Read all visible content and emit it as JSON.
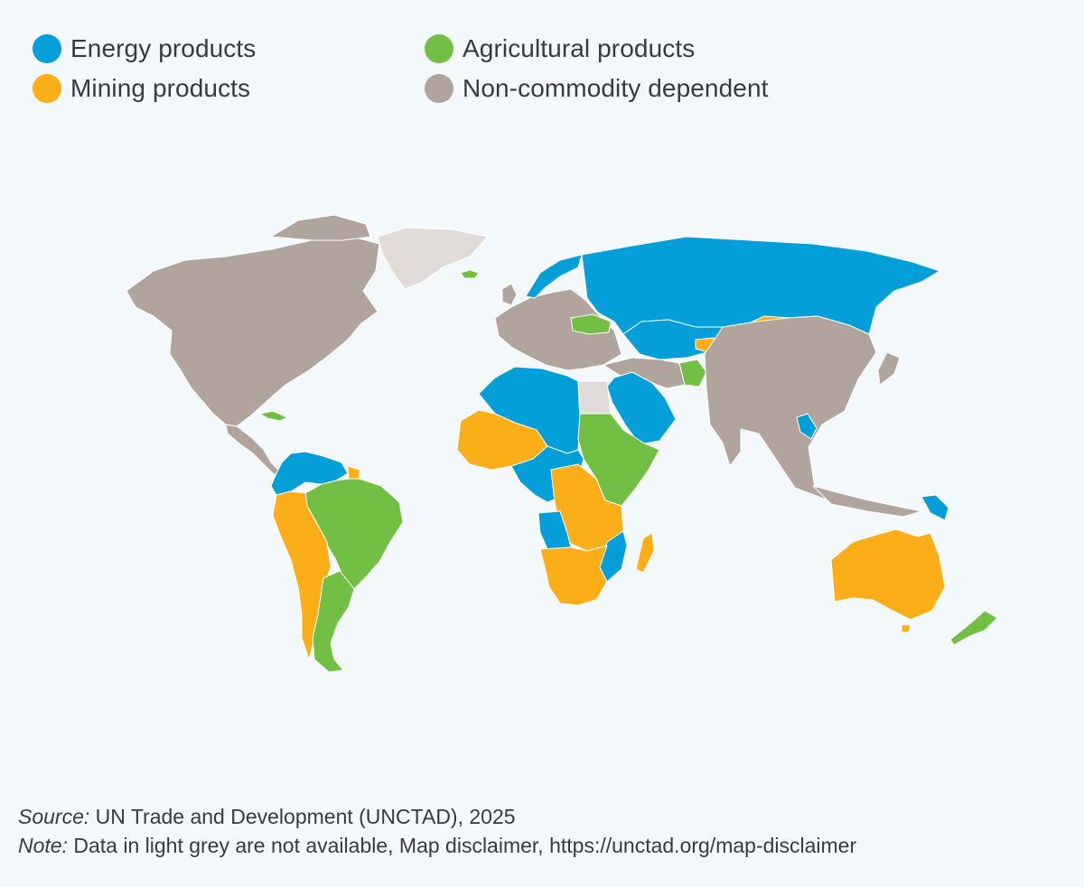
{
  "legend": [
    {
      "label": "Energy products",
      "color": "#049fd9",
      "category": "energy"
    },
    {
      "label": "Agricultural products",
      "color": "#72bf44",
      "category": "agricultural"
    },
    {
      "label": "Mining products",
      "color": "#fbae17",
      "category": "mining"
    },
    {
      "label": "Non-commodity dependent",
      "color": "#b0a49d",
      "category": "non_commodity"
    }
  ],
  "not_available_color": "#e0dbd8",
  "border_color": "#ffffff",
  "notes": {
    "source_label": "Source:",
    "source_text": " UN Trade and Development (UNCTAD), 2025",
    "note_label": "Note:",
    "note_text": " Data in light grey are not available, Map disclaimer, https://unctad.org/map-disclaimer"
  },
  "regions": [
    {
      "name": "North America",
      "category": "non_commodity"
    },
    {
      "name": "Greenland",
      "category": "not_available"
    },
    {
      "name": "Iceland",
      "category": "agricultural"
    },
    {
      "name": "Cuba",
      "category": "agricultural"
    },
    {
      "name": "Venezuela / Colombia / Ecuador / Guyana",
      "category": "energy"
    },
    {
      "name": "Suriname",
      "category": "mining"
    },
    {
      "name": "Brazil / Paraguay / Uruguay / Argentina",
      "category": "agricultural"
    },
    {
      "name": "Peru / Bolivia / Chile",
      "category": "mining"
    },
    {
      "name": "Europe",
      "category": "non_commodity"
    },
    {
      "name": "Norway",
      "category": "energy"
    },
    {
      "name": "Ukraine",
      "category": "agricultural"
    },
    {
      "name": "Russia / Central Asia",
      "category": "energy"
    },
    {
      "name": "Mongolia",
      "category": "mining"
    },
    {
      "name": "Kyrgyzstan / Tajikistan",
      "category": "mining"
    },
    {
      "name": "Afghanistan",
      "category": "agricultural"
    },
    {
      "name": "Middle East Gulf",
      "category": "energy"
    },
    {
      "name": "China / South Asia / Southeast Asia",
      "category": "non_commodity"
    },
    {
      "name": "Laos",
      "category": "energy"
    },
    {
      "name": "Papua New Guinea",
      "category": "energy"
    },
    {
      "name": "Australia",
      "category": "mining"
    },
    {
      "name": "New Zealand",
      "category": "agricultural"
    },
    {
      "name": "Algeria / Libya / Niger / Chad",
      "category": "energy"
    },
    {
      "name": "Mali / Mauritania / Burkina Faso",
      "category": "mining"
    },
    {
      "name": "Sudan / Ethiopia / Kenya",
      "category": "agricultural"
    },
    {
      "name": "Egypt",
      "category": "not_available"
    },
    {
      "name": "Nigeria / Central Africa",
      "category": "energy"
    },
    {
      "name": "DR Congo / Zambia / Tanzania",
      "category": "mining"
    },
    {
      "name": "Angola",
      "category": "energy"
    },
    {
      "name": "Mozambique",
      "category": "energy"
    },
    {
      "name": "Southern Africa",
      "category": "mining"
    },
    {
      "name": "Madagascar",
      "category": "mining"
    }
  ]
}
